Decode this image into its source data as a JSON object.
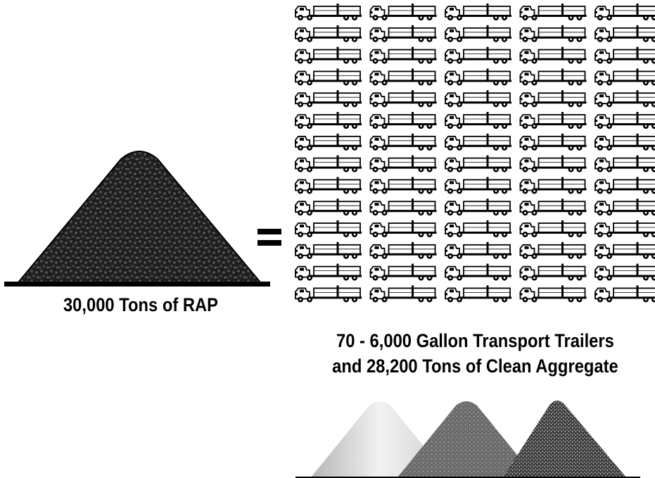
{
  "rap": {
    "label": "30,000 Tons of RAP",
    "pile_color": "#1f1f1f"
  },
  "equals": {
    "symbol": "="
  },
  "trucks": {
    "icon": "tanker-truck-icon",
    "visible_columns": 5,
    "visible_rows": 14,
    "caption_line1": "70 - 6,000 Gallon Transport Trailers",
    "caption_line2": "and 28,200 Tons of Clean Aggregate"
  },
  "aggregate": {
    "piles": [
      {
        "name": "light-aggregate-pile",
        "color": "#d9d9d9"
      },
      {
        "name": "medium-aggregate-pile",
        "color": "#666666"
      },
      {
        "name": "dark-aggregate-pile",
        "color": "#4a4a4a"
      }
    ]
  }
}
